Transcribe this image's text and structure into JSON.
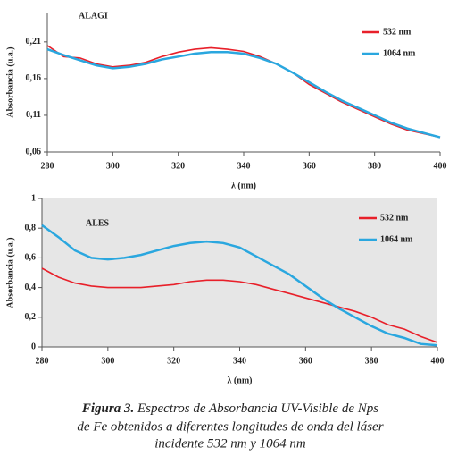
{
  "chart_data": [
    {
      "type": "line",
      "annotation": "ALAGI",
      "x_label": "λ (nm)",
      "y_label": "Absorbancia (u.a.)",
      "x": [
        280,
        285,
        290,
        295,
        300,
        305,
        310,
        315,
        320,
        325,
        330,
        335,
        340,
        345,
        350,
        355,
        360,
        365,
        370,
        375,
        380,
        385,
        390,
        395,
        400
      ],
      "series": [
        {
          "name": "532 nm",
          "color": "#e8202a",
          "values": [
            0.205,
            0.19,
            0.188,
            0.18,
            0.176,
            0.178,
            0.182,
            0.19,
            0.196,
            0.2,
            0.202,
            0.2,
            0.197,
            0.19,
            0.18,
            0.168,
            0.152,
            0.14,
            0.128,
            0.118,
            0.108,
            0.098,
            0.09,
            0.085,
            0.08
          ]
        },
        {
          "name": "1064 nm",
          "color": "#2aa7df",
          "values": [
            0.2,
            0.192,
            0.185,
            0.178,
            0.174,
            0.176,
            0.18,
            0.186,
            0.19,
            0.194,
            0.196,
            0.196,
            0.194,
            0.188,
            0.18,
            0.168,
            0.155,
            0.142,
            0.13,
            0.12,
            0.11,
            0.1,
            0.092,
            0.086,
            0.08
          ]
        }
      ],
      "xlim": [
        280,
        400
      ],
      "xticks": [
        280,
        300,
        320,
        340,
        360,
        380,
        400
      ],
      "ylim": [
        0.06,
        0.25
      ],
      "yticks": [
        {
          "value": 0.06,
          "label": "0,06"
        },
        {
          "value": 0.11,
          "label": "0,11"
        },
        {
          "value": 0.16,
          "label": "0,16"
        },
        {
          "value": 0.21,
          "label": "0,21"
        }
      ],
      "legend": "upper right",
      "background": "#ffffff"
    },
    {
      "type": "line",
      "annotation": "ALES",
      "x_label": "λ (nm)",
      "y_label": "Absorbancia (u.a.)",
      "x": [
        280,
        285,
        290,
        295,
        300,
        305,
        310,
        315,
        320,
        325,
        330,
        335,
        340,
        345,
        350,
        355,
        360,
        365,
        370,
        375,
        380,
        385,
        390,
        395,
        400
      ],
      "series": [
        {
          "name": "532 nm",
          "color": "#e8202a",
          "values": [
            0.53,
            0.47,
            0.43,
            0.41,
            0.4,
            0.4,
            0.4,
            0.41,
            0.42,
            0.44,
            0.45,
            0.45,
            0.44,
            0.42,
            0.39,
            0.36,
            0.33,
            0.3,
            0.27,
            0.24,
            0.2,
            0.15,
            0.12,
            0.07,
            0.03
          ]
        },
        {
          "name": "1064 nm",
          "color": "#2aa7df",
          "values": [
            0.82,
            0.74,
            0.65,
            0.6,
            0.59,
            0.6,
            0.62,
            0.65,
            0.68,
            0.7,
            0.71,
            0.7,
            0.67,
            0.61,
            0.55,
            0.49,
            0.41,
            0.33,
            0.26,
            0.2,
            0.14,
            0.09,
            0.06,
            0.02,
            0.01
          ]
        }
      ],
      "xlim": [
        280,
        400
      ],
      "xticks": [
        280,
        300,
        320,
        340,
        360,
        380,
        400
      ],
      "ylim": [
        0,
        1
      ],
      "yticks": [
        0,
        {
          "value": 0.2,
          "label": "0,2"
        },
        {
          "value": 0.4,
          "label": "0,4"
        },
        {
          "value": 0.6,
          "label": "0,6"
        },
        {
          "value": 0.8,
          "label": "0,8"
        },
        1
      ],
      "legend": "upper right",
      "background": "#e6e6e6"
    }
  ],
  "caption": {
    "label": "Figura 3.",
    "lines": [
      "Espectros de Absorbancia UV-Visible de Nps",
      "de Fe obtenidos a diferentes longitudes de onda del láser",
      "incidente 532 nm y 1064 nm"
    ]
  }
}
